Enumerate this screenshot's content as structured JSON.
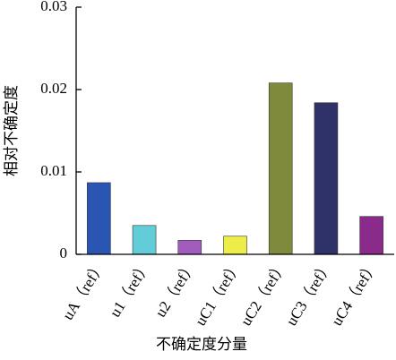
{
  "chart_data": {
    "type": "bar",
    "y_label": "相对不确定度",
    "x_label": "不确定度分量",
    "categories": [
      "uA（ref）",
      "u1（ref）",
      "u2（ref）",
      "uC1（ref）",
      "uC2（ref）",
      "uC3（ref）",
      "uC4（ref）"
    ],
    "values": [
      0.0087,
      0.0035,
      0.0017,
      0.0022,
      0.0208,
      0.0184,
      0.0046
    ],
    "colors": [
      "#2a55b3",
      "#62cdd6",
      "#a25cbd",
      "#eded4a",
      "#7f8a3c",
      "#2f3269",
      "#8a2b8c"
    ],
    "ylim": [
      0,
      0.03
    ],
    "yticks": [
      0,
      0.01,
      0.02,
      0.03
    ],
    "grid": false
  }
}
